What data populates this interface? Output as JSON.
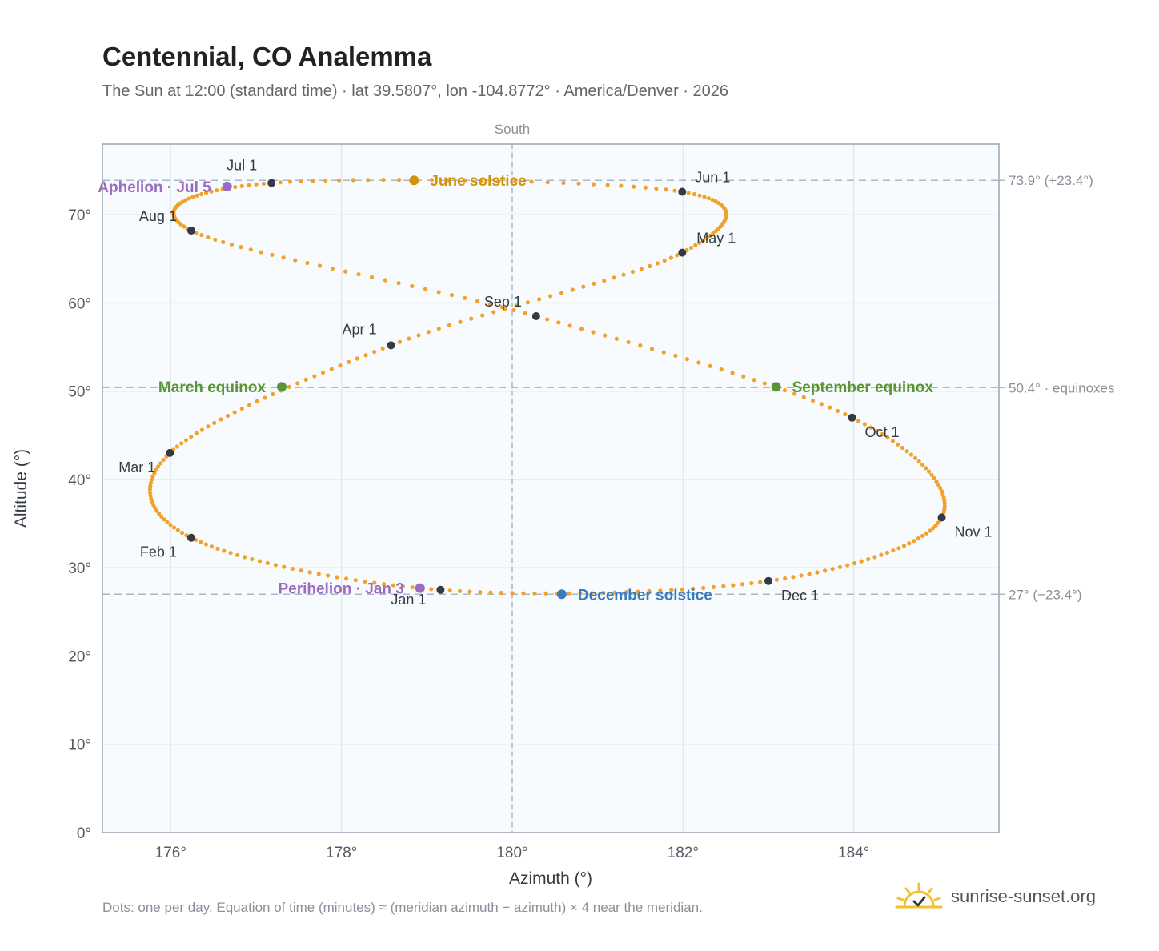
{
  "title": "Centennial, CO Analemma",
  "subtitle": "The Sun at 12:00 (standard time) · lat 39.5807°, lon -104.8772° · America/Denver · 2026",
  "footnote": "Dots: one per day. Equation of time (minutes) ≈ (meridian azimuth − azimuth) × 4 near the meridian.",
  "brand": {
    "name": "sunrise-sunset.org",
    "logo_icon": "sun-check-icon",
    "logo_color": "#f2c12e"
  },
  "colors": {
    "path": "#f0a22c",
    "month_marker": "#333a44",
    "solstice_june": "#d4920a",
    "solstice_december": "#3a7bc0",
    "equinox": "#5a9535",
    "apsis": "#9b6bbf",
    "plot_bg": "#f8fbfd",
    "grid": "#e3e9ef",
    "reference_line": "#a8b8c8"
  },
  "chart_data": {
    "type": "scatter",
    "xlabel": "Azimuth (°)",
    "ylabel": "Altitude (°)",
    "xlim": [
      175.2,
      185.7
    ],
    "ylim": [
      0,
      78
    ],
    "x_ticks": [
      176,
      178,
      180,
      182,
      184
    ],
    "x_tick_labels": [
      "176°",
      "178°",
      "180°",
      "182°",
      "184°"
    ],
    "y_ticks": [
      0,
      10,
      20,
      30,
      40,
      50,
      60,
      70
    ],
    "y_tick_labels": [
      "0°",
      "10°",
      "20°",
      "30°",
      "40°",
      "50°",
      "60°",
      "70°"
    ],
    "grid": true,
    "meridian": {
      "x": 180,
      "label": "South"
    },
    "reference_lines": [
      {
        "y": 73.9,
        "label": "73.9° (+23.4°)"
      },
      {
        "y": 50.4,
        "label": "50.4° · equinoxes"
      },
      {
        "y": 27.0,
        "label": "27° (−23.4°)"
      }
    ],
    "daily_path": {
      "description_points": [
        {
          "x": 179.16,
          "y": 27.5
        },
        {
          "x": 176.24,
          "y": 33.4
        },
        {
          "x": 175.99,
          "y": 43.0
        },
        {
          "x": 178.58,
          "y": 55.2
        },
        {
          "x": 181.99,
          "y": 65.7
        },
        {
          "x": 181.99,
          "y": 72.6
        },
        {
          "x": 177.18,
          "y": 73.6
        },
        {
          "x": 176.24,
          "y": 68.2
        },
        {
          "x": 180.28,
          "y": 58.5
        },
        {
          "x": 183.98,
          "y": 47.0
        },
        {
          "x": 185.03,
          "y": 35.7
        },
        {
          "x": 183.0,
          "y": 28.5
        }
      ]
    },
    "month_markers": [
      {
        "label": "Jan 1",
        "x": 179.16,
        "y": 27.5
      },
      {
        "label": "Feb 1",
        "x": 176.24,
        "y": 33.4
      },
      {
        "label": "Mar 1",
        "x": 175.99,
        "y": 43.0
      },
      {
        "label": "Apr 1",
        "x": 178.58,
        "y": 55.2
      },
      {
        "label": "May 1",
        "x": 181.99,
        "y": 65.7
      },
      {
        "label": "Jun 1",
        "x": 181.99,
        "y": 72.6
      },
      {
        "label": "Jul 1",
        "x": 177.18,
        "y": 73.6
      },
      {
        "label": "Aug 1",
        "x": 176.24,
        "y": 68.2
      },
      {
        "label": "Sep 1",
        "x": 180.28,
        "y": 58.5
      },
      {
        "label": "Oct 1",
        "x": 183.98,
        "y": 47.0
      },
      {
        "label": "Nov 1",
        "x": 185.03,
        "y": 35.7
      },
      {
        "label": "Dec 1",
        "x": 183.0,
        "y": 28.5
      }
    ],
    "events": [
      {
        "label": "June solstice",
        "x": 178.85,
        "y": 73.9,
        "kind": "solstice_june"
      },
      {
        "label": "December solstice",
        "x": 180.58,
        "y": 27.0,
        "kind": "solstice_december"
      },
      {
        "label": "March equinox",
        "x": 177.3,
        "y": 50.5,
        "kind": "equinox"
      },
      {
        "label": "September equinox",
        "x": 183.09,
        "y": 50.5,
        "kind": "equinox"
      },
      {
        "label": "Aphelion · Jul 5",
        "x": 176.66,
        "y": 73.2,
        "kind": "apsis"
      },
      {
        "label": "Perihelion · Jan 3",
        "x": 178.92,
        "y": 27.7,
        "kind": "apsis"
      }
    ]
  }
}
